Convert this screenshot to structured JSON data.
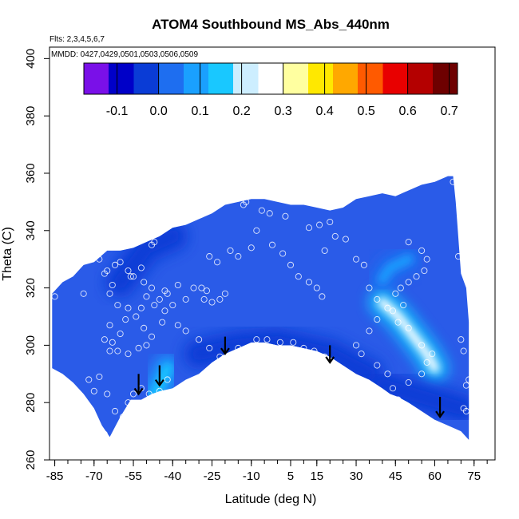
{
  "chart_data": {
    "type": "heatmap",
    "title": "ATOM4 Southbound MS_Abs_440nm",
    "annotation_flights": "Flts: 2,3,4,5,6,7",
    "annotation_dates": "MMDD: 0427,0429,0501,0503,0506,0509",
    "xlabel": "Latitude (deg N)",
    "ylabel": "Theta (C)",
    "xlim": [
      -87,
      83
    ],
    "ylim": [
      260,
      404
    ],
    "x_ticks": [
      -85,
      -70,
      -55,
      -40,
      -25,
      -10,
      5,
      15,
      30,
      45,
      60,
      75
    ],
    "x_minor_step": 5,
    "y_ticks": [
      260,
      280,
      300,
      320,
      340,
      360,
      380,
      400
    ],
    "colorbar": {
      "ticks": [
        -0.1,
        0.0,
        0.1,
        0.2,
        0.3,
        0.4,
        0.5,
        0.6,
        0.7
      ],
      "tick_labels": [
        "-0.1",
        "0.0",
        "0.1",
        "0.2",
        "0.3",
        "0.4",
        "0.5",
        "0.6",
        "0.7"
      ],
      "range": [
        -0.18,
        0.72
      ],
      "colors": [
        "#7a10e8",
        "#0000c8",
        "#0a3cd6",
        "#1e6ef0",
        "#1aa0ff",
        "#19c8ff",
        "#cdeeff",
        "#ffffff",
        "#ffffa0",
        "#ffe800",
        "#ffa800",
        "#ff5a00",
        "#e80000",
        "#b40000",
        "#6e0000"
      ]
    },
    "upper_boundary": [
      [
        -86,
        318
      ],
      [
        -82,
        322
      ],
      [
        -78,
        324
      ],
      [
        -74,
        328
      ],
      [
        -70,
        329
      ],
      [
        -65,
        333
      ],
      [
        -60,
        333
      ],
      [
        -55,
        334
      ],
      [
        -50,
        336
      ],
      [
        -45,
        338
      ],
      [
        -40,
        341
      ],
      [
        -35,
        342
      ],
      [
        -30,
        344
      ],
      [
        -25,
        346
      ],
      [
        -20,
        349
      ],
      [
        -15,
        350
      ],
      [
        -10,
        351
      ],
      [
        -5,
        351
      ],
      [
        0,
        350
      ],
      [
        5,
        349
      ],
      [
        10,
        349
      ],
      [
        15,
        348
      ],
      [
        20,
        347
      ],
      [
        25,
        348
      ],
      [
        30,
        351
      ],
      [
        35,
        352
      ],
      [
        40,
        353
      ],
      [
        45,
        352
      ],
      [
        50,
        354
      ],
      [
        55,
        356
      ],
      [
        60,
        357
      ],
      [
        65,
        359
      ],
      [
        67,
        359
      ],
      [
        68,
        350
      ],
      [
        70,
        325
      ],
      [
        72,
        320
      ],
      [
        73,
        308
      ]
    ],
    "lower_boundary": [
      [
        -86,
        292
      ],
      [
        -82,
        290
      ],
      [
        -78,
        287
      ],
      [
        -74,
        283
      ],
      [
        -70,
        278
      ],
      [
        -67,
        272
      ],
      [
        -64,
        268
      ],
      [
        -60,
        275
      ],
      [
        -56,
        281
      ],
      [
        -52,
        281
      ],
      [
        -48,
        283
      ],
      [
        -45,
        284
      ],
      [
        -40,
        285
      ],
      [
        -35,
        288
      ],
      [
        -30,
        290
      ],
      [
        -25,
        294
      ],
      [
        -20,
        297
      ],
      [
        -15,
        299
      ],
      [
        -10,
        301
      ],
      [
        -5,
        301
      ],
      [
        0,
        300
      ],
      [
        5,
        300
      ],
      [
        10,
        299
      ],
      [
        15,
        298
      ],
      [
        20,
        296
      ],
      [
        25,
        293
      ],
      [
        30,
        290
      ],
      [
        35,
        288
      ],
      [
        40,
        285
      ],
      [
        43,
        283
      ],
      [
        46,
        282
      ],
      [
        50,
        280
      ],
      [
        55,
        277
      ],
      [
        60,
        274
      ],
      [
        65,
        272
      ],
      [
        70,
        270
      ],
      [
        73,
        267
      ]
    ],
    "features": [
      {
        "type": "plume",
        "path": [
          [
            40,
            315
          ],
          [
            46,
            310
          ],
          [
            52,
            303
          ],
          [
            57,
            297
          ],
          [
            60,
            292
          ]
        ],
        "max_value": 0.27
      },
      {
        "type": "plume",
        "path": [
          [
            -47,
            282
          ],
          [
            -44,
            288
          ],
          [
            -42,
            292
          ]
        ],
        "max_value": 0.12
      },
      {
        "type": "plume",
        "path": [
          [
            40,
            323
          ],
          [
            43,
            327
          ],
          [
            50,
            330
          ]
        ],
        "max_value": 0.1
      },
      {
        "type": "low",
        "path": [
          [
            -60,
            322
          ],
          [
            -55,
            328
          ],
          [
            -50,
            334
          ],
          [
            -40,
            338
          ]
        ],
        "min_value": -0.02
      },
      {
        "type": "low",
        "path": [
          [
            -30,
            297
          ],
          [
            -15,
            300
          ],
          [
            0,
            301
          ],
          [
            20,
            297
          ],
          [
            35,
            290
          ]
        ],
        "min_value": -0.01
      },
      {
        "type": "low",
        "path": [
          [
            40,
            286
          ],
          [
            55,
            282
          ],
          [
            70,
            278
          ]
        ],
        "min_value": -0.05
      }
    ],
    "observations": [
      [
        -85,
        317
      ],
      [
        -74,
        318
      ],
      [
        -66,
        325
      ],
      [
        -68,
        330
      ],
      [
        -65,
        326
      ],
      [
        -60,
        329
      ],
      [
        -62,
        328
      ],
      [
        -57,
        326
      ],
      [
        -56,
        324
      ],
      [
        -63,
        321
      ],
      [
        -64,
        318
      ],
      [
        -61,
        314
      ],
      [
        -57,
        313
      ],
      [
        -58,
        309
      ],
      [
        -64,
        307
      ],
      [
        -60,
        304
      ],
      [
        -66,
        302
      ],
      [
        -63,
        301
      ],
      [
        -61,
        298
      ],
      [
        -57,
        297
      ],
      [
        -64,
        298
      ],
      [
        -72,
        288
      ],
      [
        -68,
        289
      ],
      [
        -70,
        284
      ],
      [
        -65,
        283
      ],
      [
        -62,
        277
      ],
      [
        -59,
        275
      ],
      [
        -57,
        280
      ],
      [
        -55,
        283
      ],
      [
        -52,
        285
      ],
      [
        -49,
        283
      ],
      [
        -47,
        282
      ],
      [
        -45,
        284
      ],
      [
        -42,
        288
      ],
      [
        -66,
        269
      ],
      [
        -53,
        299
      ],
      [
        -50,
        300
      ],
      [
        -48,
        303
      ],
      [
        -51,
        306
      ],
      [
        -54,
        310
      ],
      [
        -52,
        313
      ],
      [
        -50,
        317
      ],
      [
        -47,
        314
      ],
      [
        -45,
        316
      ],
      [
        -43,
        319
      ],
      [
        -48,
        320
      ],
      [
        -51,
        322
      ],
      [
        -55,
        324
      ],
      [
        -52,
        327
      ],
      [
        -48,
        335
      ],
      [
        -47,
        336
      ],
      [
        -38,
        321
      ],
      [
        -35,
        316
      ],
      [
        -32,
        320
      ],
      [
        -29,
        320
      ],
      [
        -27,
        319
      ],
      [
        -25,
        315
      ],
      [
        -22,
        316
      ],
      [
        -20,
        318
      ],
      [
        -28,
        316
      ],
      [
        -26,
        331
      ],
      [
        -23,
        329
      ],
      [
        -18,
        333
      ],
      [
        -15,
        331
      ],
      [
        -10,
        334
      ],
      [
        -13,
        349
      ],
      [
        -12,
        350
      ],
      [
        -6,
        347
      ],
      [
        -3,
        346
      ],
      [
        3,
        345
      ],
      [
        -8,
        340
      ],
      [
        -2,
        335
      ],
      [
        2,
        332
      ],
      [
        5,
        328
      ],
      [
        8,
        324
      ],
      [
        12,
        322
      ],
      [
        15,
        320
      ],
      [
        17,
        317
      ],
      [
        12,
        341
      ],
      [
        16,
        342
      ],
      [
        20,
        343
      ],
      [
        22,
        338
      ],
      [
        18,
        333
      ],
      [
        26,
        337
      ],
      [
        30,
        330
      ],
      [
        33,
        328
      ],
      [
        35,
        320
      ],
      [
        38,
        316
      ],
      [
        42,
        313
      ],
      [
        44,
        312
      ],
      [
        46,
        308
      ],
      [
        38,
        309
      ],
      [
        35,
        305
      ],
      [
        30,
        300
      ],
      [
        32,
        297
      ],
      [
        38,
        293
      ],
      [
        42,
        290
      ],
      [
        44,
        285
      ],
      [
        46,
        281
      ],
      [
        50,
        287
      ],
      [
        55,
        290
      ],
      [
        57,
        294
      ],
      [
        59,
        297
      ],
      [
        55,
        300
      ],
      [
        50,
        306
      ],
      [
        48,
        314
      ],
      [
        45,
        318
      ],
      [
        47,
        320
      ],
      [
        50,
        322
      ],
      [
        53,
        324
      ],
      [
        56,
        326
      ],
      [
        57,
        330
      ],
      [
        55,
        333
      ],
      [
        50,
        336
      ],
      [
        67,
        357
      ],
      [
        69,
        331
      ],
      [
        70,
        302
      ],
      [
        71,
        298
      ],
      [
        72,
        286
      ],
      [
        73,
        288
      ],
      [
        71,
        278
      ],
      [
        72,
        277
      ],
      [
        -40,
        314
      ],
      [
        -42,
        318
      ],
      [
        -43,
        312
      ],
      [
        -44,
        308
      ],
      [
        -38,
        307
      ],
      [
        -35,
        305
      ],
      [
        -30,
        302
      ],
      [
        -26,
        299
      ],
      [
        -22,
        296
      ],
      [
        -18,
        293
      ],
      [
        -15,
        299
      ],
      [
        -12,
        297
      ],
      [
        -8,
        302
      ],
      [
        -4,
        302
      ],
      [
        1,
        301
      ],
      [
        6,
        301
      ],
      [
        10,
        299
      ],
      [
        14,
        298
      ],
      [
        18,
        296
      ],
      [
        22,
        293
      ],
      [
        26,
        290
      ]
    ],
    "arrows": [
      {
        "x": -53,
        "y_top": 290,
        "y_tip": 283
      },
      {
        "x": -45,
        "y_top": 293,
        "y_tip": 286
      },
      {
        "x": -20,
        "y_top": 303,
        "y_tip": 297
      },
      {
        "x": 20,
        "y_top": 300,
        "y_tip": 294
      },
      {
        "x": 62,
        "y_top": 282,
        "y_tip": 275
      }
    ]
  }
}
